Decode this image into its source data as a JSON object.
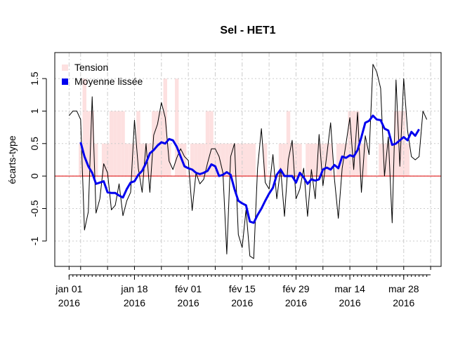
{
  "chart_data": {
    "type": "line",
    "title": "Sel - HET1",
    "ylabel": "écarts-type",
    "x": [
      "2016-01-01",
      "2016-01-02",
      "2016-01-03",
      "2016-01-04",
      "2016-01-05",
      "2016-01-06",
      "2016-01-07",
      "2016-01-08",
      "2016-01-09",
      "2016-01-10",
      "2016-01-11",
      "2016-01-12",
      "2016-01-13",
      "2016-01-14",
      "2016-01-15",
      "2016-01-16",
      "2016-01-17",
      "2016-01-18",
      "2016-01-19",
      "2016-01-20",
      "2016-01-21",
      "2016-01-22",
      "2016-01-23",
      "2016-01-24",
      "2016-01-25",
      "2016-01-26",
      "2016-01-27",
      "2016-01-28",
      "2016-01-29",
      "2016-01-30",
      "2016-01-31",
      "2016-02-01",
      "2016-02-02",
      "2016-02-03",
      "2016-02-04",
      "2016-02-05",
      "2016-02-06",
      "2016-02-07",
      "2016-02-08",
      "2016-02-09",
      "2016-02-10",
      "2016-02-11",
      "2016-02-12",
      "2016-02-13",
      "2016-02-14",
      "2016-02-15",
      "2016-02-16",
      "2016-02-17",
      "2016-02-18",
      "2016-02-19",
      "2016-02-20",
      "2016-02-21",
      "2016-02-22",
      "2016-02-23",
      "2016-02-24",
      "2016-02-25",
      "2016-02-26",
      "2016-02-27",
      "2016-02-28",
      "2016-02-29",
      "2016-03-01",
      "2016-03-02",
      "2016-03-03",
      "2016-03-04",
      "2016-03-05",
      "2016-03-06",
      "2016-03-07",
      "2016-03-08",
      "2016-03-09",
      "2016-03-10",
      "2016-03-11",
      "2016-03-12",
      "2016-03-13",
      "2016-03-14",
      "2016-03-15",
      "2016-03-16",
      "2016-03-17",
      "2016-03-18",
      "2016-03-19",
      "2016-03-20",
      "2016-03-21",
      "2016-03-22",
      "2016-03-23",
      "2016-03-24",
      "2016-03-25",
      "2016-03-26",
      "2016-03-27",
      "2016-03-28",
      "2016-03-29",
      "2016-03-30",
      "2016-03-31",
      "2016-04-01",
      "2016-04-02",
      "2016-04-03"
    ],
    "series": [
      {
        "name": "Tension",
        "kind": "bar",
        "color": "#fde0e0",
        "values": [
          0,
          0,
          0,
          0.5,
          1.5,
          1,
          1,
          0.5,
          0,
          0.5,
          0.5,
          1,
          1,
          1,
          1,
          0.5,
          0.5,
          0.5,
          1,
          0.5,
          0.5,
          0.5,
          1,
          1,
          1,
          1.5,
          0.5,
          0,
          1.5,
          0.5,
          0.5,
          0,
          0.5,
          0.5,
          0.5,
          0.5,
          1,
          1,
          0.5,
          0.5,
          0.5,
          0.5,
          0.5,
          0.5,
          0.5,
          0.5,
          0.5,
          0.5,
          0.5,
          0,
          0,
          0.5,
          0,
          0,
          0,
          0.5,
          0.5,
          1,
          0.5,
          0.5,
          0.5,
          0,
          0.5,
          0.5,
          0.5,
          0.5,
          0.5,
          0.5,
          0.5,
          0,
          0.5,
          0.5,
          0.5,
          1,
          1,
          1,
          0.5,
          0.5,
          0,
          0,
          0,
          0.5,
          0.5,
          0.5,
          0.5,
          1,
          1,
          1,
          0.5,
          0,
          0,
          0,
          0,
          0
        ]
      },
      {
        "kind": "line",
        "color": "#000000",
        "values": [
          0.93,
          1,
          1,
          0.87,
          -0.83,
          -0.55,
          1.22,
          -0.57,
          -0.35,
          0.19,
          0.05,
          -0.52,
          -0.45,
          -0.12,
          -0.61,
          -0.38,
          -0.25,
          0.86,
          0.12,
          -0.25,
          0.5,
          -0.25,
          0.63,
          0.8,
          1.13,
          0.9,
          0.23,
          0.1,
          0.28,
          0.42,
          0.3,
          0.24,
          -0.53,
          0.05,
          -0.12,
          -0.05,
          0.2,
          0.42,
          0.42,
          0.3,
          0.05,
          -1.2,
          0.3,
          0.5,
          -0.9,
          -1.1,
          -0.52,
          -1.23,
          -1.27,
          0.12,
          0.73,
          -0.1,
          -0.2,
          0.33,
          -0.35,
          0.12,
          -0.62,
          0.25,
          0.55,
          -0.35,
          -0.2,
          0.12,
          -0.62,
          0.1,
          -0.35,
          0.64,
          -0.15,
          0.32,
          0.82,
          -0.05,
          -0.65,
          0.12,
          0.5,
          0.9,
          0.1,
          0.98,
          -0.25,
          0.62,
          0.33,
          1.72,
          1.6,
          1.35,
          0,
          0.6,
          -0.72,
          1.48,
          0.15,
          1.5,
          0.7,
          0.3,
          0.25,
          0.3,
          1,
          0.87
        ]
      },
      {
        "name": "Moyenne lissée",
        "kind": "line",
        "color": "#0000ee",
        "width": 3,
        "values": [
          null,
          null,
          null,
          0.52,
          0.3,
          0.15,
          0.05,
          -0.12,
          -0.1,
          -0.08,
          -0.25,
          -0.26,
          -0.26,
          -0.3,
          -0.33,
          -0.2,
          -0.1,
          -0.08,
          0.02,
          0.08,
          0.2,
          0.35,
          0.4,
          0.47,
          0.52,
          0.5,
          0.57,
          0.55,
          0.45,
          0.3,
          0.15,
          0.12,
          0.1,
          0.05,
          0.03,
          0.05,
          0.08,
          0.18,
          0.15,
          0,
          0.02,
          0.06,
          0.02,
          -0.2,
          -0.38,
          -0.42,
          -0.45,
          -0.7,
          -0.72,
          -0.6,
          -0.5,
          -0.38,
          -0.27,
          -0.18,
          0.02,
          0.1,
          0,
          0,
          0,
          -0.1,
          0.05,
          -0.02,
          -0.12,
          -0.05,
          -0.07,
          -0.05,
          0.1,
          0.13,
          0.1,
          0.17,
          0.12,
          0.3,
          0.28,
          0.32,
          0.3,
          0.4,
          0.6,
          0.82,
          0.85,
          0.93,
          0.87,
          0.86,
          0.73,
          0.7,
          0.48,
          0.5,
          0.55,
          0.6,
          0.55,
          0.68,
          0.62,
          0.72,
          null,
          null
        ]
      }
    ],
    "reference_line": {
      "value": 0,
      "color": "#dd0000"
    },
    "ylim": [
      -1.39,
      1.9
    ],
    "yticks": [
      -1,
      -0.5,
      0,
      0.5,
      1,
      1.5
    ],
    "xticks": [
      {
        "value": "2016-01-01",
        "label": [
          "jan 01",
          "2016"
        ]
      },
      {
        "value": "2016-01-18",
        "label": [
          "jan 18",
          "2016"
        ]
      },
      {
        "value": "2016-02-01",
        "label": [
          "fév 01",
          "2016"
        ]
      },
      {
        "value": "2016-02-15",
        "label": [
          "fév 15",
          "2016"
        ]
      },
      {
        "value": "2016-02-29",
        "label": [
          "fév 29",
          "2016"
        ]
      },
      {
        "value": "2016-03-14",
        "label": [
          "mar 14",
          "2016"
        ]
      },
      {
        "value": "2016-03-28",
        "label": [
          "mar 28",
          "2016"
        ]
      }
    ],
    "xgrid": [
      "2016-01-01",
      "2016-01-04",
      "2016-01-11",
      "2016-01-18",
      "2016-01-25",
      "2016-02-01",
      "2016-02-08",
      "2016-02-15",
      "2016-02-22",
      "2016-02-29",
      "2016-03-07",
      "2016-03-14",
      "2016-03-21",
      "2016-03-28",
      "2016-04-04"
    ],
    "grid": true,
    "legend": "top-left"
  }
}
